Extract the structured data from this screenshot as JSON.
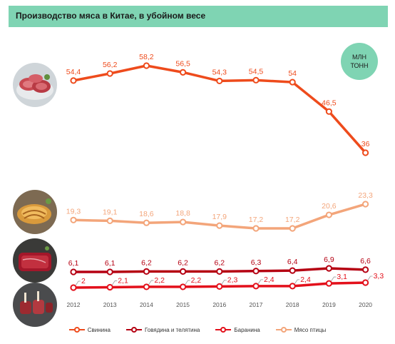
{
  "title": "Производство мяса в Китае, в убойном весе",
  "unit": "МЛН ТОНН",
  "colors": {
    "header": "#7fd4b3",
    "pork": "#ee4b1c",
    "beef": "#b50012",
    "mutton": "#e3101b",
    "poultry": "#f3a57a"
  },
  "images": [
    "pork-meat-photo",
    "chicken-photo",
    "beef-photo",
    "mutton-photo"
  ],
  "chart_data": {
    "type": "line",
    "x": [
      "2012",
      "2013",
      "2014",
      "2015",
      "2016",
      "2017",
      "2018",
      "2019",
      "2020"
    ],
    "series": [
      {
        "name": "Свинина",
        "color": "#ee4b1c",
        "values": [
          54.4,
          56.2,
          58.2,
          56.5,
          54.3,
          54.5,
          54,
          46.5,
          36
        ],
        "labels": [
          "54,4",
          "56,2",
          "58,2",
          "56,5",
          "54,3",
          "54,5",
          "54",
          "46,5",
          "36"
        ]
      },
      {
        "name": "Говядина и телятина",
        "color": "#b50012",
        "values": [
          6.1,
          6.1,
          6.2,
          6.2,
          6.2,
          6.3,
          6.4,
          6.9,
          6.6
        ],
        "labels": [
          "6,1",
          "6,1",
          "6,2",
          "6,2",
          "6,2",
          "6,3",
          "6,4",
          "6,9",
          "6,6"
        ]
      },
      {
        "name": "Баранина",
        "color": "#e3101b",
        "values": [
          2,
          2.1,
          2.2,
          2.2,
          2.3,
          2.4,
          2.4,
          3.1,
          3.3
        ],
        "labels": [
          "2",
          "2,1",
          "2,2",
          "2,2",
          "2,3",
          "2,4",
          "2,4",
          "3,1",
          "3,3"
        ]
      },
      {
        "name": "Мясо птицы",
        "color": "#f3a57a",
        "values": [
          19.3,
          19.1,
          18.6,
          18.8,
          17.9,
          17.2,
          17.2,
          20.6,
          23.3
        ],
        "labels": [
          "19,3",
          "19,1",
          "18,6",
          "18,8",
          "17,9",
          "17,2",
          "17,2",
          "20,6",
          "23,3"
        ]
      }
    ],
    "grid": false,
    "legend_position": "bottom"
  }
}
